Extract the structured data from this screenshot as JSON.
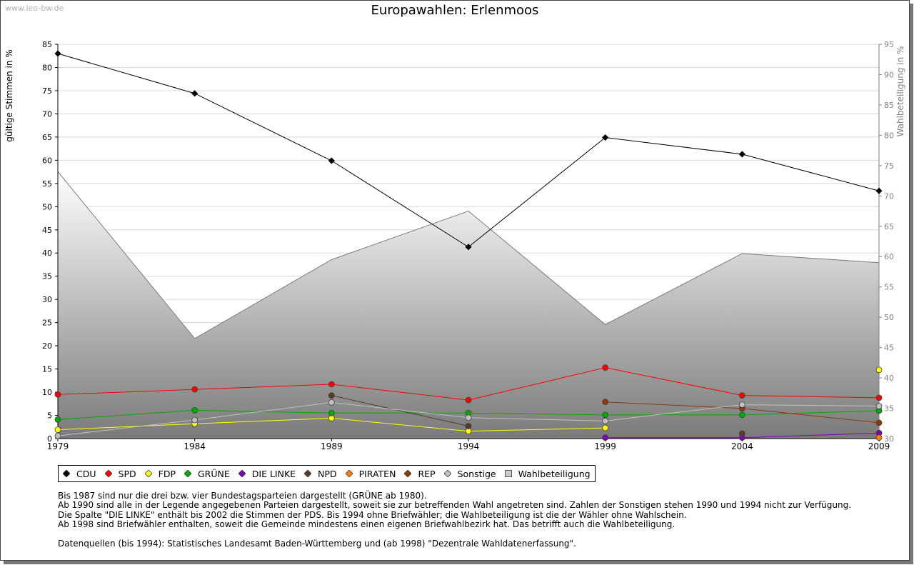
{
  "watermark": "www.leo-bw.de",
  "title": "Europawahlen: Erlenmoos",
  "chart_data": {
    "type": "line",
    "title": "Europawahlen: Erlenmoos",
    "xlabel": "",
    "ylabel": "gültige Stimmen in %",
    "y2label": "Wahlbeteiligung in %",
    "x": [
      1979,
      1984,
      1989,
      1994,
      1999,
      2004,
      2009
    ],
    "x_ticks": [
      "1979",
      "1984",
      "1989",
      "1994",
      "1999",
      "2004",
      "2009"
    ],
    "ylim": [
      0,
      85
    ],
    "y_ticks": [
      "0",
      "5",
      "10",
      "15",
      "20",
      "25",
      "30",
      "35",
      "40",
      "45",
      "50",
      "55",
      "60",
      "65",
      "70",
      "75",
      "80",
      "85"
    ],
    "y2lim": [
      30,
      95
    ],
    "y2_ticks": [
      "30",
      "35",
      "40",
      "45",
      "50",
      "55",
      "60",
      "65",
      "70",
      "75",
      "80",
      "85",
      "90",
      "95"
    ],
    "grid": true,
    "legend_position": "bottom",
    "series": [
      {
        "name": "CDU",
        "color": "#000000",
        "values": [
          83.0,
          74.4,
          59.9,
          41.3,
          64.9,
          61.3,
          53.4
        ]
      },
      {
        "name": "SPD",
        "color": "#ff0000",
        "values": [
          9.5,
          10.6,
          11.7,
          8.3,
          15.3,
          9.3,
          8.8
        ]
      },
      {
        "name": "FDP",
        "color": "#ffff00",
        "values": [
          1.9,
          3.2,
          4.4,
          1.6,
          2.3,
          null,
          14.8
        ]
      },
      {
        "name": "GRÜNE",
        "color": "#00aa00",
        "values": [
          4.1,
          6.1,
          5.5,
          5.5,
          5.1,
          5.1,
          6.0
        ]
      },
      {
        "name": "DIE LINKE",
        "color": "#8000c0",
        "values": [
          null,
          null,
          null,
          null,
          0.2,
          0.2,
          1.2
        ]
      },
      {
        "name": "NPD",
        "color": "#5a3a28",
        "values": [
          null,
          null,
          9.3,
          2.7,
          null,
          1.1,
          null
        ]
      },
      {
        "name": "PIRATEN",
        "color": "#ff7f00",
        "values": [
          null,
          null,
          null,
          null,
          null,
          null,
          0.2
        ]
      },
      {
        "name": "REP",
        "color": "#8b3a0f",
        "values": [
          null,
          null,
          null,
          null,
          7.9,
          6.5,
          3.4
        ]
      },
      {
        "name": "Sonstige",
        "color": "#c0c0c0",
        "values": [
          0.6,
          4.0,
          7.8,
          4.5,
          3.8,
          7.3,
          7.0
        ]
      }
    ],
    "turnout": {
      "name": "Wahlbeteiligung",
      "axis": "right",
      "values": [
        74.0,
        46.5,
        59.5,
        67.5,
        48.8,
        60.5,
        59.0
      ]
    }
  },
  "legend": [
    {
      "label": "CDU",
      "color": "#000000",
      "shape": "diamond"
    },
    {
      "label": "SPD",
      "color": "#ff0000",
      "shape": "diamond"
    },
    {
      "label": "FDP",
      "color": "#ffff00",
      "shape": "diamond"
    },
    {
      "label": "GRÜNE",
      "color": "#00aa00",
      "shape": "diamond"
    },
    {
      "label": "DIE LINKE",
      "color": "#8000c0",
      "shape": "diamond"
    },
    {
      "label": "NPD",
      "color": "#5a3a28",
      "shape": "diamond"
    },
    {
      "label": "PIRATEN",
      "color": "#ff7f00",
      "shape": "diamond"
    },
    {
      "label": "REP",
      "color": "#8b3a0f",
      "shape": "diamond"
    },
    {
      "label": "Sonstige",
      "color": "#c0c0c0",
      "shape": "diamond"
    },
    {
      "label": "Wahlbeteiligung",
      "color": "#cccccc",
      "shape": "square"
    }
  ],
  "notes": {
    "line1": "Bis 1987 sind nur die drei bzw. vier Bundestagsparteien dargestellt (GRÜNE ab 1980).",
    "line2": "Ab 1990 sind alle in der Legende angegebenen Parteien dargestellt, soweit sie zur betreffenden Wahl angetreten sind. Zahlen der Sonstigen stehen 1990 und 1994 nicht zur Verfügung.",
    "line3": "Die Spalte \"DIE LINKE\" enthält bis 2002 die Stimmen der PDS. Bis 1994 ohne Briefwähler; die Wahlbeteiligung ist die der Wähler ohne Wahlschein.",
    "line4": "Ab 1998 sind Briefwähler enthalten, soweit die Gemeinde mindestens einen eigenen Briefwahlbezirk hat. Das betrifft auch die Wahlbeteiligung.",
    "source": "Datenquellen (bis 1994): Statistisches Landesamt Baden-Württemberg und (ab 1998) \"Dezentrale Wahldatenerfassung\"."
  }
}
